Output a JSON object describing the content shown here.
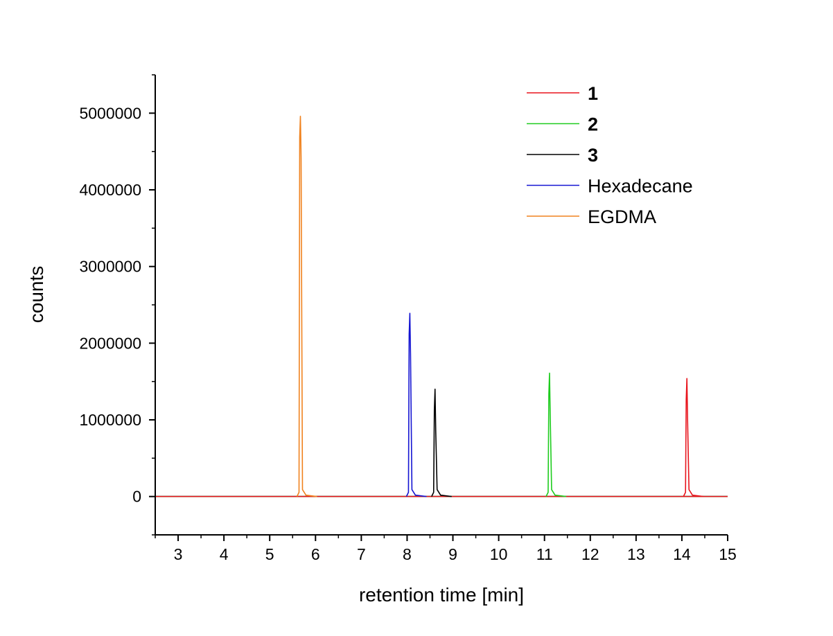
{
  "chart_data": {
    "type": "line",
    "title": "",
    "xlabel": "retention time [min]",
    "ylabel": "counts",
    "xlim": [
      2.5,
      15
    ],
    "ylim": [
      -500000,
      5500000
    ],
    "x_ticks": [
      3,
      4,
      5,
      6,
      7,
      8,
      9,
      10,
      11,
      12,
      13,
      14,
      15
    ],
    "y_ticks": [
      0,
      1000000,
      2000000,
      3000000,
      4000000,
      5000000
    ],
    "grid": false,
    "legend_position": "top-right",
    "series": [
      {
        "name": "1",
        "bold": true,
        "color": "#e8141c",
        "peaks": [
          {
            "x": 14.11,
            "y": 1540000
          }
        ]
      },
      {
        "name": "2",
        "bold": true,
        "color": "#1ecc1e",
        "peaks": [
          {
            "x": 11.11,
            "y": 1610000
          }
        ]
      },
      {
        "name": "3",
        "bold": true,
        "color": "#000000",
        "peaks": [
          {
            "x": 8.61,
            "y": 1400000
          }
        ]
      },
      {
        "name": "Hexadecane",
        "bold": false,
        "color": "#1414d2",
        "peaks": [
          {
            "x": 8.06,
            "y": 2390000
          }
        ]
      },
      {
        "name": "EGDMA",
        "bold": false,
        "color": "#f0821e",
        "peaks": [
          {
            "x": 5.67,
            "y": 4960000
          }
        ]
      }
    ]
  }
}
